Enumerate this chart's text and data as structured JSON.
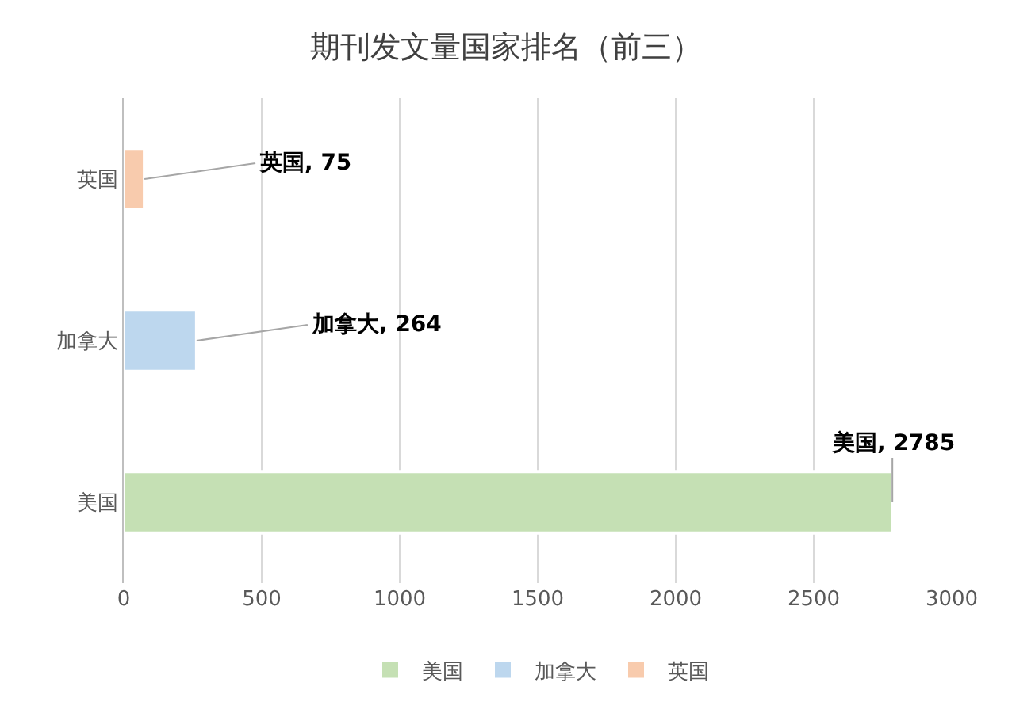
{
  "chart_data": {
    "type": "bar",
    "title": "期刊发文量国家排名（前三）",
    "orientation": "horizontal",
    "categories": [
      "英国",
      "加拿大",
      "美国"
    ],
    "series": [
      {
        "name": "美国",
        "color": "#c5e0b4",
        "values": [
          null,
          null,
          2785
        ],
        "value_labels": [
          null,
          null,
          "美国, 2785"
        ]
      },
      {
        "name": "加拿大",
        "color": "#bdd7ee",
        "values": [
          null,
          264,
          null
        ],
        "value_labels": [
          null,
          "加拿大, 264",
          null
        ]
      },
      {
        "name": "英国",
        "color": "#f8cbad",
        "values": [
          75,
          null,
          null
        ],
        "value_labels": [
          "英国, 75",
          null,
          null
        ]
      }
    ],
    "xlim": [
      0,
      3000
    ],
    "xticks": [
      0,
      500,
      1000,
      1500,
      2000,
      2500,
      3000
    ],
    "grid": "x",
    "legend": "bottom"
  }
}
